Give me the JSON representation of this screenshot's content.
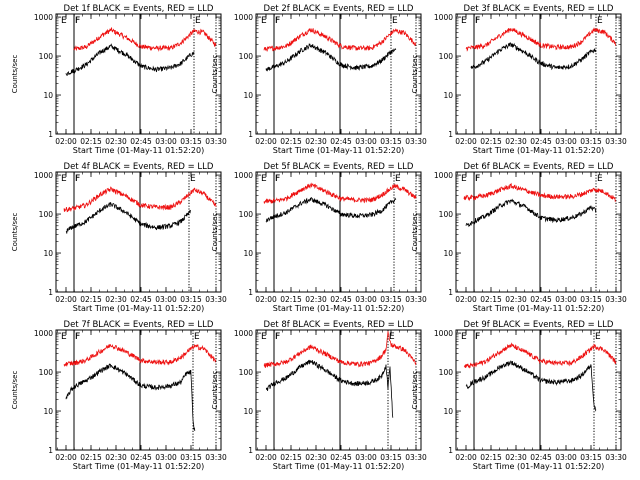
{
  "colors": {
    "events": "#000000",
    "lld": "#ee1111",
    "axis": "#000000",
    "background": "#ffffff"
  },
  "ylabel": "Counts/sec",
  "xlabel": "Start Time (01-May-11 01:52:20)",
  "y_ticks": [
    {
      "value": 1,
      "label": "1"
    },
    {
      "value": 10,
      "label": "10"
    },
    {
      "value": 100,
      "label": "100"
    },
    {
      "value": 1000,
      "label": "1000"
    }
  ],
  "x_ticks": [
    {
      "value": 2.0,
      "label": "02:00"
    },
    {
      "value": 2.25,
      "label": "02:15"
    },
    {
      "value": 2.5,
      "label": "02:30"
    },
    {
      "value": 2.75,
      "label": "02:45"
    },
    {
      "value": 3.0,
      "label": "03:00"
    },
    {
      "value": 3.25,
      "label": "03:15"
    },
    {
      "value": 3.5,
      "label": "03:30"
    }
  ],
  "marker_labels": {
    "E": "E",
    "F": "F"
  },
  "chart_data": [
    {
      "type": "line",
      "title": "Det 1f BLACK = Events, RED = LLD",
      "xlim": [
        1.9,
        3.55
      ],
      "ylim": [
        1,
        1200
      ],
      "y_scale": "log",
      "markers": {
        "E": [
          1.94,
          3.28
        ],
        "F": [
          2.08,
          2.08
        ],
        "solid": [
          2.08,
          2.74
        ],
        "dotted": [
          3.28,
          3.5
        ]
      },
      "series": [
        {
          "color": "lld",
          "x": [
            2.08,
            2.2,
            2.35,
            2.45,
            2.6,
            2.75,
            2.9,
            3.05,
            3.15,
            3.28,
            3.38,
            3.5
          ],
          "y": [
            150,
            170,
            330,
            470,
            300,
            175,
            160,
            160,
            220,
            440,
            400,
            190
          ]
        },
        {
          "color": "events",
          "x": [
            2.0,
            2.05,
            2.1,
            2.2,
            2.35,
            2.45,
            2.6,
            2.75,
            2.9,
            3.05,
            3.15,
            3.25,
            3.28
          ],
          "y": [
            35,
            40,
            45,
            60,
            130,
            180,
            110,
            55,
            45,
            50,
            65,
            110,
            120
          ]
        }
      ]
    },
    {
      "type": "line",
      "title": "Det 2f BLACK = Events, RED = LLD",
      "xlim": [
        1.9,
        3.55
      ],
      "ylim": [
        1,
        1200
      ],
      "y_scale": "log",
      "markers": {
        "E": [
          1.94,
          3.25
        ],
        "F": [
          2.08,
          2.08
        ],
        "solid": [
          2.08,
          2.74
        ],
        "dotted": [
          3.25,
          3.5
        ]
      },
      "series": [
        {
          "color": "lld",
          "x": [
            1.98,
            2.08,
            2.2,
            2.35,
            2.45,
            2.6,
            2.75,
            2.9,
            3.05,
            3.15,
            3.28,
            3.38,
            3.5
          ],
          "y": [
            150,
            160,
            180,
            340,
            480,
            310,
            180,
            160,
            160,
            220,
            450,
            400,
            200
          ]
        },
        {
          "color": "events",
          "x": [
            2.0,
            2.05,
            2.1,
            2.2,
            2.35,
            2.45,
            2.6,
            2.75,
            2.9,
            3.05,
            3.15,
            3.25,
            3.3
          ],
          "y": [
            45,
            50,
            55,
            70,
            140,
            190,
            120,
            60,
            50,
            55,
            75,
            130,
            140
          ]
        }
      ]
    },
    {
      "type": "line",
      "title": "Det 3f BLACK = Events, RED = LLD",
      "xlim": [
        1.9,
        3.55
      ],
      "ylim": [
        1,
        1200
      ],
      "y_scale": "log",
      "markers": {
        "E": [
          1.94,
          3.3
        ],
        "F": [
          2.08,
          2.08
        ],
        "solid": [
          2.08,
          2.74
        ],
        "dotted": [
          3.3,
          3.5
        ]
      },
      "series": [
        {
          "color": "lld",
          "x": [
            2.0,
            2.08,
            2.2,
            2.35,
            2.45,
            2.6,
            2.75,
            2.9,
            3.05,
            3.15,
            3.28,
            3.38,
            3.5
          ],
          "y": [
            160,
            165,
            190,
            350,
            500,
            320,
            190,
            170,
            170,
            230,
            470,
            420,
            210
          ]
        },
        {
          "color": "events",
          "x": [
            2.05,
            2.1,
            2.2,
            2.35,
            2.45,
            2.6,
            2.75,
            2.9,
            3.05,
            3.15,
            3.25,
            3.3
          ],
          "y": [
            50,
            55,
            75,
            150,
            200,
            120,
            65,
            50,
            55,
            80,
            130,
            150
          ]
        }
      ]
    },
    {
      "type": "line",
      "title": "Det 4f BLACK = Events, RED = LLD",
      "xlim": [
        1.9,
        3.55
      ],
      "ylim": [
        1,
        1200
      ],
      "y_scale": "log",
      "markers": {
        "E": [
          1.94,
          3.23
        ],
        "F": [
          2.08,
          2.08
        ],
        "solid": [
          2.08,
          2.74
        ],
        "dotted": [
          3.23,
          3.5
        ]
      },
      "series": [
        {
          "color": "lld",
          "x": [
            1.98,
            2.08,
            2.2,
            2.35,
            2.45,
            2.6,
            2.75,
            2.9,
            3.05,
            3.15,
            3.28,
            3.38,
            3.5
          ],
          "y": [
            130,
            140,
            170,
            330,
            440,
            290,
            170,
            150,
            150,
            210,
            420,
            330,
            160
          ]
        },
        {
          "color": "events",
          "x": [
            2.0,
            2.05,
            2.1,
            2.2,
            2.35,
            2.45,
            2.6,
            2.75,
            2.9,
            3.05,
            3.15,
            3.25
          ],
          "y": [
            35,
            45,
            50,
            65,
            130,
            180,
            110,
            55,
            45,
            50,
            65,
            120
          ]
        }
      ]
    },
    {
      "type": "line",
      "title": "Det 5f BLACK = Events, RED = LLD",
      "xlim": [
        1.9,
        3.55
      ],
      "ylim": [
        1,
        1200
      ],
      "y_scale": "log",
      "markers": {
        "E": [
          1.94,
          3.28
        ],
        "F": [
          2.08,
          2.08
        ],
        "solid": [
          2.08,
          2.74
        ],
        "dotted": [
          3.28,
          3.5
        ]
      },
      "series": [
        {
          "color": "lld",
          "x": [
            1.98,
            2.08,
            2.2,
            2.35,
            2.45,
            2.6,
            2.75,
            2.9,
            3.05,
            3.15,
            3.28,
            3.38,
            3.5
          ],
          "y": [
            210,
            215,
            250,
            420,
            560,
            380,
            250,
            230,
            230,
            300,
            520,
            430,
            260
          ]
        },
        {
          "color": "events",
          "x": [
            2.0,
            2.05,
            2.1,
            2.2,
            2.35,
            2.45,
            2.6,
            2.75,
            2.9,
            3.05,
            3.15,
            3.25,
            3.3
          ],
          "y": [
            70,
            80,
            90,
            110,
            190,
            240,
            170,
            100,
            90,
            95,
            120,
            200,
            250
          ]
        }
      ]
    },
    {
      "type": "line",
      "title": "Det 6f BLACK = Events, RED = LLD",
      "xlim": [
        1.9,
        3.55
      ],
      "ylim": [
        1,
        1200
      ],
      "y_scale": "log",
      "markers": {
        "E": [
          1.94,
          3.3
        ],
        "F": [
          2.08,
          2.08
        ],
        "solid": [
          2.08,
          2.74
        ],
        "dotted": [
          3.3,
          3.5
        ]
      },
      "series": [
        {
          "color": "lld",
          "x": [
            1.98,
            2.08,
            2.2,
            2.35,
            2.45,
            2.6,
            2.75,
            2.9,
            3.05,
            3.15,
            3.28,
            3.38,
            3.5
          ],
          "y": [
            260,
            270,
            300,
            430,
            520,
            400,
            300,
            280,
            280,
            320,
            430,
            380,
            230
          ]
        },
        {
          "color": "events",
          "x": [
            2.0,
            2.05,
            2.1,
            2.2,
            2.35,
            2.45,
            2.6,
            2.75,
            2.9,
            3.05,
            3.15,
            3.25,
            3.3
          ],
          "y": [
            50,
            60,
            70,
            90,
            170,
            220,
            150,
            80,
            70,
            80,
            100,
            150,
            120
          ]
        }
      ]
    },
    {
      "type": "line",
      "title": "Det 7f BLACK = Events, RED = LLD",
      "xlim": [
        1.9,
        3.55
      ],
      "ylim": [
        1,
        1200
      ],
      "y_scale": "log",
      "markers": {
        "E": [
          1.94,
          3.27
        ],
        "F": [
          2.08,
          2.08
        ],
        "solid": [
          2.08,
          2.74
        ],
        "dotted": [
          3.27,
          3.5
        ]
      },
      "series": [
        {
          "color": "lld",
          "x": [
            1.98,
            2.08,
            2.2,
            2.35,
            2.45,
            2.6,
            2.75,
            2.9,
            3.05,
            3.15,
            3.28,
            3.38,
            3.5
          ],
          "y": [
            160,
            170,
            200,
            350,
            500,
            330,
            200,
            180,
            180,
            240,
            460,
            400,
            190
          ]
        },
        {
          "color": "events",
          "x": [
            2.0,
            2.05,
            2.1,
            2.2,
            2.35,
            2.45,
            2.6,
            2.75,
            2.9,
            3.05,
            3.15,
            3.2,
            3.25,
            3.27,
            3.29
          ],
          "y": [
            20,
            35,
            45,
            60,
            110,
            150,
            90,
            45,
            40,
            45,
            55,
            90,
            100,
            5,
            3
          ]
        }
      ]
    },
    {
      "type": "line",
      "title": "Det 8f BLACK = Events, RED = LLD",
      "xlim": [
        1.9,
        3.55
      ],
      "ylim": [
        1,
        1200
      ],
      "y_scale": "log",
      "markers": {
        "E": [
          1.94,
          3.22
        ],
        "F": [
          2.08,
          2.08
        ],
        "solid": [
          2.08,
          2.74
        ],
        "dotted": [
          3.22,
          3.5
        ]
      },
      "series": [
        {
          "color": "lld",
          "x": [
            1.98,
            2.08,
            2.2,
            2.35,
            2.45,
            2.6,
            2.75,
            2.9,
            3.05,
            3.15,
            3.2,
            3.22,
            3.25,
            3.38,
            3.5
          ],
          "y": [
            150,
            160,
            180,
            320,
            450,
            290,
            180,
            160,
            170,
            250,
            380,
            1000,
            500,
            380,
            170
          ]
        },
        {
          "color": "events",
          "x": [
            2.0,
            2.05,
            2.1,
            2.2,
            2.35,
            2.45,
            2.6,
            2.75,
            2.9,
            3.05,
            3.15,
            3.2,
            3.22,
            3.24,
            3.27
          ],
          "y": [
            35,
            45,
            55,
            70,
            140,
            190,
            110,
            60,
            50,
            55,
            75,
            150,
            40,
            140,
            5
          ]
        }
      ]
    },
    {
      "type": "line",
      "title": "Det 9f BLACK = Events, RED = LLD",
      "xlim": [
        1.9,
        3.55
      ],
      "ylim": [
        1,
        1200
      ],
      "y_scale": "log",
      "markers": {
        "E": [
          1.94,
          3.28
        ],
        "F": [
          2.08,
          2.08
        ],
        "solid": [
          2.08,
          2.74
        ],
        "dotted": [
          3.28,
          3.5
        ]
      },
      "series": [
        {
          "color": "lld",
          "x": [
            1.98,
            2.08,
            2.2,
            2.35,
            2.45,
            2.6,
            2.75,
            2.9,
            3.05,
            3.15,
            3.28,
            3.38,
            3.5
          ],
          "y": [
            140,
            150,
            190,
            350,
            490,
            320,
            190,
            170,
            170,
            240,
            460,
            380,
            180
          ]
        },
        {
          "color": "events",
          "x": [
            2.0,
            2.05,
            2.1,
            2.2,
            2.35,
            2.45,
            2.6,
            2.75,
            2.9,
            3.05,
            3.15,
            3.25,
            3.28,
            3.3
          ],
          "y": [
            40,
            50,
            60,
            75,
            140,
            180,
            110,
            60,
            55,
            60,
            80,
            150,
            15,
            10
          ]
        }
      ]
    }
  ]
}
